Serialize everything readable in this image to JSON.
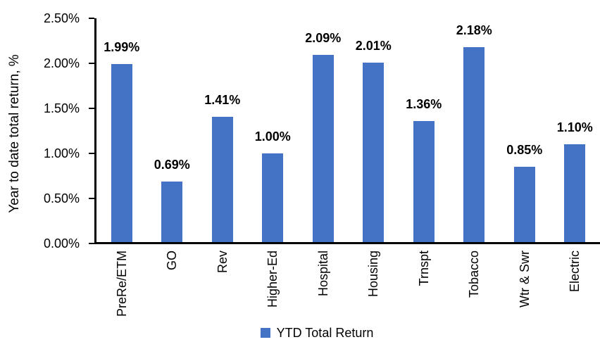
{
  "chart_data": {
    "type": "bar",
    "title": "",
    "xlabel": "",
    "ylabel": "Year to date total return, %",
    "categories": [
      "PreRe/ETM",
      "GO",
      "Rev",
      "Higher-Ed",
      "Hospital",
      "Housing",
      "Trnspt",
      "Tobacco",
      "Wtr & Swr",
      "Electric"
    ],
    "values": [
      1.99,
      0.69,
      1.41,
      1.0,
      2.09,
      2.01,
      1.36,
      2.18,
      0.85,
      1.1
    ],
    "data_labels": [
      "1.99%",
      "0.69%",
      "1.41%",
      "1.00%",
      "2.09%",
      "2.01%",
      "1.36%",
      "2.18%",
      "0.85%",
      "1.10%"
    ],
    "series_name": "YTD Total Return",
    "y_ticks": [
      "0.00%",
      "0.50%",
      "1.00%",
      "1.50%",
      "2.00%",
      "2.50%"
    ],
    "y_tick_values": [
      0.0,
      0.5,
      1.0,
      1.5,
      2.0,
      2.5
    ],
    "ylim": [
      0,
      2.5
    ],
    "grid": false,
    "legend_position": "bottom",
    "bar_color": "#4472C4",
    "axis_color": "#000000",
    "text_color": "#000000"
  }
}
